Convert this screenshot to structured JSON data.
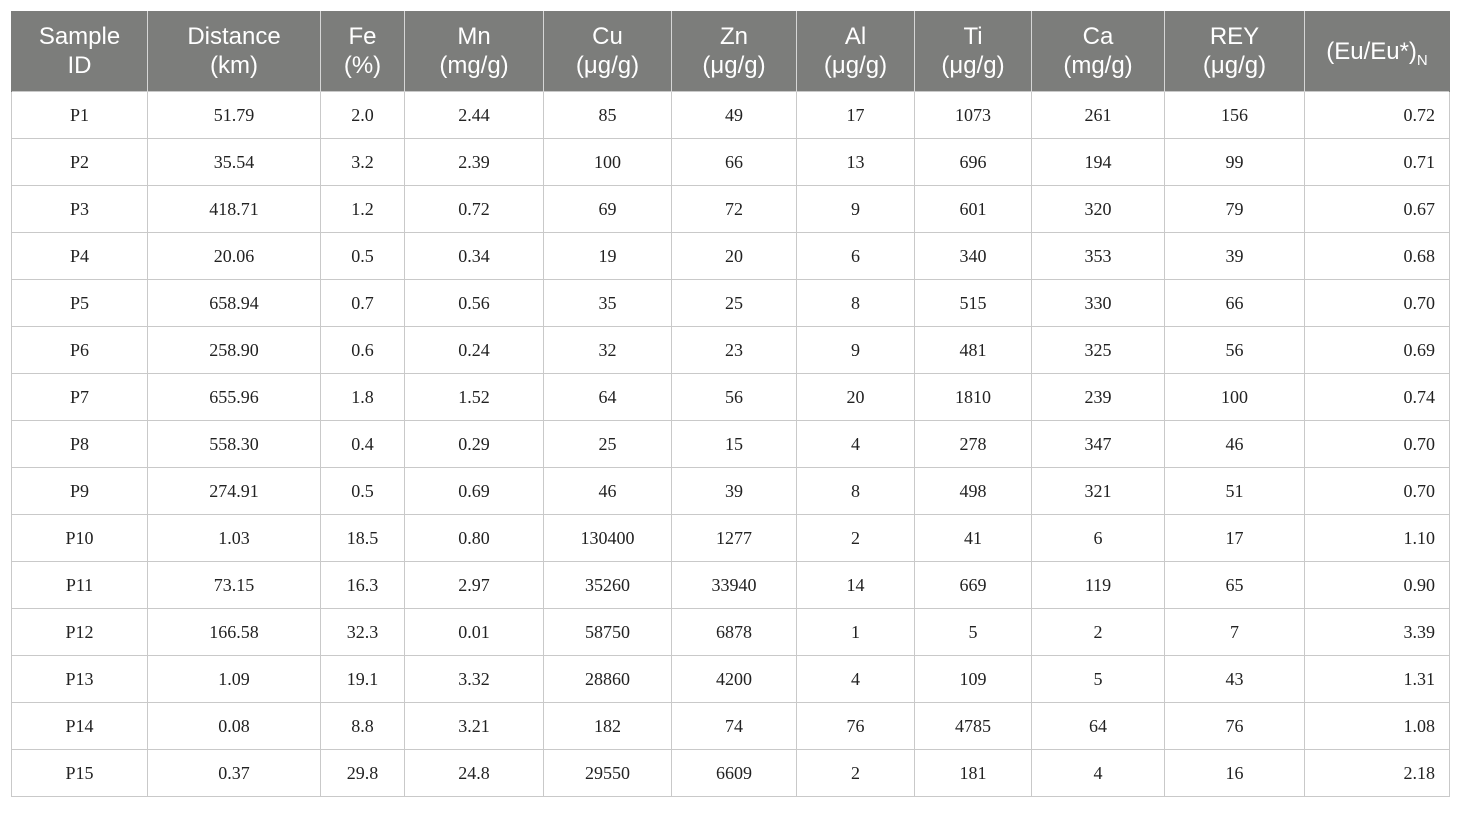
{
  "table": {
    "headers": [
      {
        "line1": "Sample",
        "line2": "ID",
        "sub": ""
      },
      {
        "line1": "Distance",
        "line2": "(km)",
        "sub": ""
      },
      {
        "line1": "Fe",
        "line2": "(%)",
        "sub": ""
      },
      {
        "line1": "Mn",
        "line2": "(mg/g)",
        "sub": ""
      },
      {
        "line1": "Cu",
        "line2": "(μg/g)",
        "sub": ""
      },
      {
        "line1": "Zn",
        "line2": "(μg/g)",
        "sub": ""
      },
      {
        "line1": "Al",
        "line2": "(μg/g)",
        "sub": ""
      },
      {
        "line1": "Ti",
        "line2": "(μg/g)",
        "sub": ""
      },
      {
        "line1": "Ca",
        "line2": "(mg/g)",
        "sub": ""
      },
      {
        "line1": "REY",
        "line2": "(μg/g)",
        "sub": ""
      },
      {
        "line1": "(Eu/Eu*)",
        "line2": "",
        "sub": "N"
      }
    ],
    "rows": [
      [
        "P1",
        "51.79",
        "2.0",
        "2.44",
        "85",
        "49",
        "17",
        "1073",
        "261",
        "156",
        "0.72"
      ],
      [
        "P2",
        "35.54",
        "3.2",
        "2.39",
        "100",
        "66",
        "13",
        "696",
        "194",
        "99",
        "0.71"
      ],
      [
        "P3",
        "418.71",
        "1.2",
        "0.72",
        "69",
        "72",
        "9",
        "601",
        "320",
        "79",
        "0.67"
      ],
      [
        "P4",
        "20.06",
        "0.5",
        "0.34",
        "19",
        "20",
        "6",
        "340",
        "353",
        "39",
        "0.68"
      ],
      [
        "P5",
        "658.94",
        "0.7",
        "0.56",
        "35",
        "25",
        "8",
        "515",
        "330",
        "66",
        "0.70"
      ],
      [
        "P6",
        "258.90",
        "0.6",
        "0.24",
        "32",
        "23",
        "9",
        "481",
        "325",
        "56",
        "0.69"
      ],
      [
        "P7",
        "655.96",
        "1.8",
        "1.52",
        "64",
        "56",
        "20",
        "1810",
        "239",
        "100",
        "0.74"
      ],
      [
        "P8",
        "558.30",
        "0.4",
        "0.29",
        "25",
        "15",
        "4",
        "278",
        "347",
        "46",
        "0.70"
      ],
      [
        "P9",
        "274.91",
        "0.5",
        "0.69",
        "46",
        "39",
        "8",
        "498",
        "321",
        "51",
        "0.70"
      ],
      [
        "P10",
        "1.03",
        "18.5",
        "0.80",
        "130400",
        "1277",
        "2",
        "41",
        "6",
        "17",
        "1.10"
      ],
      [
        "P11",
        "73.15",
        "16.3",
        "2.97",
        "35260",
        "33940",
        "14",
        "669",
        "119",
        "65",
        "0.90"
      ],
      [
        "P12",
        "166.58",
        "32.3",
        "0.01",
        "58750",
        "6878",
        "1",
        "5",
        "2",
        "7",
        "3.39"
      ],
      [
        "P13",
        "1.09",
        "19.1",
        "3.32",
        "28860",
        "4200",
        "4",
        "109",
        "5",
        "43",
        "1.31"
      ],
      [
        "P14",
        "0.08",
        "8.8",
        "3.21",
        "182",
        "74",
        "76",
        "4785",
        "64",
        "76",
        "1.08"
      ],
      [
        "P15",
        "0.37",
        "29.8",
        "24.8",
        "29550",
        "6609",
        "2",
        "181",
        "4",
        "16",
        "2.18"
      ]
    ]
  }
}
